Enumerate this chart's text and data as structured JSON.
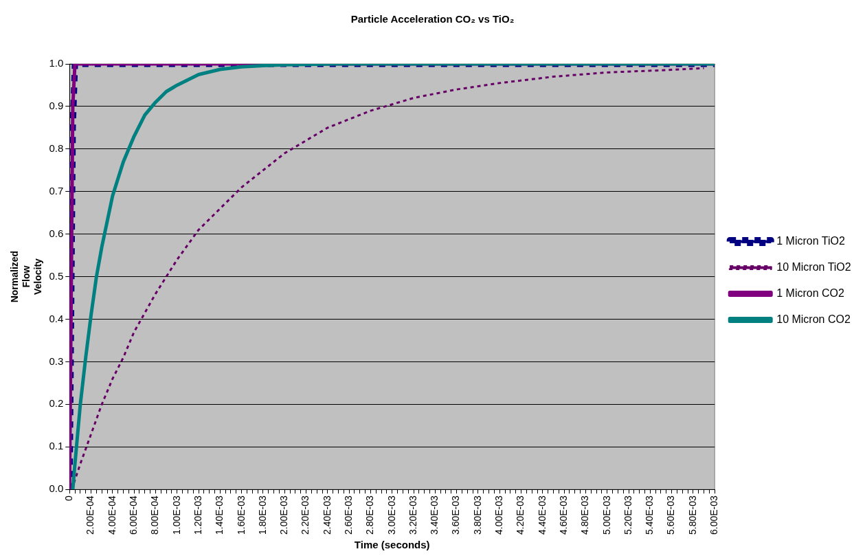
{
  "chart_data": {
    "type": "line",
    "title": "Particle Acceleration CO₂ vs TiO₂",
    "xlabel": "Time (seconds)",
    "ylabel": "Normalized Flow Velocity",
    "xlim": [
      0,
      0.006
    ],
    "ylim": [
      0,
      1
    ],
    "xticks": [
      {
        "value": 0,
        "label": "0"
      },
      {
        "value": 5e-05,
        "label": null
      },
      {
        "value": 0.0001,
        "label": null
      },
      {
        "value": 0.00015,
        "label": null
      },
      {
        "value": 0.0002,
        "label": "2.00E-04"
      },
      {
        "value": 0.00025,
        "label": null
      },
      {
        "value": 0.0003,
        "label": null
      },
      {
        "value": 0.00035,
        "label": null
      },
      {
        "value": 0.0004,
        "label": "4.00E-04"
      },
      {
        "value": 0.00045,
        "label": null
      },
      {
        "value": 0.0005,
        "label": null
      },
      {
        "value": 0.00055,
        "label": null
      },
      {
        "value": 0.0006,
        "label": "6.00E-04"
      },
      {
        "value": 0.00065,
        "label": null
      },
      {
        "value": 0.0007,
        "label": null
      },
      {
        "value": 0.00075,
        "label": null
      },
      {
        "value": 0.0008,
        "label": "8.00E-04"
      },
      {
        "value": 0.00085,
        "label": null
      },
      {
        "value": 0.0009,
        "label": null
      },
      {
        "value": 0.00095,
        "label": null
      },
      {
        "value": 0.001,
        "label": "1.00E-03"
      },
      {
        "value": 0.00105,
        "label": null
      },
      {
        "value": 0.0011,
        "label": null
      },
      {
        "value": 0.00115,
        "label": null
      },
      {
        "value": 0.0012,
        "label": "1.20E-03"
      },
      {
        "value": 0.00125,
        "label": null
      },
      {
        "value": 0.0013,
        "label": null
      },
      {
        "value": 0.00135,
        "label": null
      },
      {
        "value": 0.0014,
        "label": "1.40E-03"
      },
      {
        "value": 0.00145,
        "label": null
      },
      {
        "value": 0.0015,
        "label": null
      },
      {
        "value": 0.00155,
        "label": null
      },
      {
        "value": 0.0016,
        "label": "1.60E-03"
      },
      {
        "value": 0.00165,
        "label": null
      },
      {
        "value": 0.0017,
        "label": null
      },
      {
        "value": 0.00175,
        "label": null
      },
      {
        "value": 0.0018,
        "label": "1.80E-03"
      },
      {
        "value": 0.00185,
        "label": null
      },
      {
        "value": 0.0019,
        "label": null
      },
      {
        "value": 0.00195,
        "label": null
      },
      {
        "value": 0.002,
        "label": "2.00E-03"
      },
      {
        "value": 0.00205,
        "label": null
      },
      {
        "value": 0.0021,
        "label": null
      },
      {
        "value": 0.00215,
        "label": null
      },
      {
        "value": 0.0022,
        "label": "2.20E-03"
      },
      {
        "value": 0.00225,
        "label": null
      },
      {
        "value": 0.0023,
        "label": null
      },
      {
        "value": 0.00235,
        "label": null
      },
      {
        "value": 0.0024,
        "label": "2.40E-03"
      },
      {
        "value": 0.00245,
        "label": null
      },
      {
        "value": 0.0025,
        "label": null
      },
      {
        "value": 0.00255,
        "label": null
      },
      {
        "value": 0.0026,
        "label": "2.60E-03"
      },
      {
        "value": 0.00265,
        "label": null
      },
      {
        "value": 0.0027,
        "label": null
      },
      {
        "value": 0.00275,
        "label": null
      },
      {
        "value": 0.0028,
        "label": "2.80E-03"
      },
      {
        "value": 0.00285,
        "label": null
      },
      {
        "value": 0.0029,
        "label": null
      },
      {
        "value": 0.00295,
        "label": null
      },
      {
        "value": 0.003,
        "label": "3.00E-03"
      },
      {
        "value": 0.00305,
        "label": null
      },
      {
        "value": 0.0031,
        "label": null
      },
      {
        "value": 0.00315,
        "label": null
      },
      {
        "value": 0.0032,
        "label": "3.20E-03"
      },
      {
        "value": 0.00325,
        "label": null
      },
      {
        "value": 0.0033,
        "label": null
      },
      {
        "value": 0.00335,
        "label": null
      },
      {
        "value": 0.0034,
        "label": "3.40E-03"
      },
      {
        "value": 0.00345,
        "label": null
      },
      {
        "value": 0.0035,
        "label": null
      },
      {
        "value": 0.00355,
        "label": null
      },
      {
        "value": 0.0036,
        "label": "3.60E-03"
      },
      {
        "value": 0.00365,
        "label": null
      },
      {
        "value": 0.0037,
        "label": null
      },
      {
        "value": 0.00375,
        "label": null
      },
      {
        "value": 0.0038,
        "label": "3.80E-03"
      },
      {
        "value": 0.00385,
        "label": null
      },
      {
        "value": 0.0039,
        "label": null
      },
      {
        "value": 0.00395,
        "label": null
      },
      {
        "value": 0.004,
        "label": "4.00E-03"
      },
      {
        "value": 0.00405,
        "label": null
      },
      {
        "value": 0.0041,
        "label": null
      },
      {
        "value": 0.00415,
        "label": null
      },
      {
        "value": 0.0042,
        "label": "4.20E-03"
      },
      {
        "value": 0.00425,
        "label": null
      },
      {
        "value": 0.0043,
        "label": null
      },
      {
        "value": 0.00435,
        "label": null
      },
      {
        "value": 0.0044,
        "label": "4.40E-03"
      },
      {
        "value": 0.00445,
        "label": null
      },
      {
        "value": 0.0045,
        "label": null
      },
      {
        "value": 0.00455,
        "label": null
      },
      {
        "value": 0.0046,
        "label": "4.60E-03"
      },
      {
        "value": 0.00465,
        "label": null
      },
      {
        "value": 0.0047,
        "label": null
      },
      {
        "value": 0.00475,
        "label": null
      },
      {
        "value": 0.0048,
        "label": "4.80E-03"
      },
      {
        "value": 0.00485,
        "label": null
      },
      {
        "value": 0.0049,
        "label": null
      },
      {
        "value": 0.00495,
        "label": null
      },
      {
        "value": 0.005,
        "label": "5.00E-03"
      },
      {
        "value": 0.00505,
        "label": null
      },
      {
        "value": 0.0051,
        "label": null
      },
      {
        "value": 0.00515,
        "label": null
      },
      {
        "value": 0.0052,
        "label": "5.20E-03"
      },
      {
        "value": 0.00525,
        "label": null
      },
      {
        "value": 0.0053,
        "label": null
      },
      {
        "value": 0.00535,
        "label": null
      },
      {
        "value": 0.0054,
        "label": "5.40E-03"
      },
      {
        "value": 0.00545,
        "label": null
      },
      {
        "value": 0.0055,
        "label": null
      },
      {
        "value": 0.00555,
        "label": null
      },
      {
        "value": 0.0056,
        "label": "5.60E-03"
      },
      {
        "value": 0.00565,
        "label": null
      },
      {
        "value": 0.0057,
        "label": null
      },
      {
        "value": 0.00575,
        "label": null
      },
      {
        "value": 0.0058,
        "label": "5.80E-03"
      },
      {
        "value": 0.00585,
        "label": null
      },
      {
        "value": 0.0059,
        "label": null
      },
      {
        "value": 0.00595,
        "label": null
      },
      {
        "value": 0.006,
        "label": "6.00E-03"
      }
    ],
    "yticks": [
      {
        "value": 0,
        "label": "0.0"
      },
      0.1,
      0.2,
      0.3,
      0.4,
      0.5,
      0.6,
      0.7,
      0.8,
      0.9,
      {
        "value": 1,
        "label": "1.0"
      }
    ],
    "grid": "y",
    "legend": "right",
    "marker": "none",
    "series": [
      {
        "name": "1 Micron TiO2",
        "color": "#000080",
        "line_style": "dashed",
        "x": [
          0,
          3e-05,
          5e-05,
          0.006
        ],
        "values": [
          0,
          0.85,
          1,
          1
        ]
      },
      {
        "name": "10 Micron TiO2",
        "color": "#660066",
        "line_style": "dotted",
        "x": [
          2e-05,
          0.0001,
          0.0002,
          0.0003,
          0.0004,
          0.0005,
          0.0006,
          0.0008,
          0.001,
          0.0012,
          0.0014,
          0.0016,
          0.0018,
          0.002,
          0.0024,
          0.0028,
          0.0032,
          0.0036,
          0.004,
          0.0045,
          0.005,
          0.0055,
          0.0059
        ],
        "values": [
          0,
          0.06,
          0.13,
          0.2,
          0.26,
          0.31,
          0.37,
          0.46,
          0.54,
          0.61,
          0.66,
          0.71,
          0.75,
          0.79,
          0.85,
          0.89,
          0.92,
          0.94,
          0.955,
          0.97,
          0.98,
          0.985,
          0.99
        ]
      },
      {
        "name": "1 Micron CO2",
        "color": "#800080",
        "line_style": "solid",
        "x": [
          0,
          3e-05,
          5e-05,
          0.006
        ],
        "values": [
          0,
          0.9,
          1,
          1
        ]
      },
      {
        "name": "10 Micron CO2",
        "color": "#008080",
        "line_style": "solid",
        "x": [
          3e-05,
          5e-05,
          0.0001,
          0.00015,
          0.0002,
          0.00025,
          0.0003,
          0.0004,
          0.0005,
          0.0006,
          0.0007,
          0.0008,
          0.0009,
          0.001,
          0.0012,
          0.0014,
          0.0016,
          0.0018,
          0.002,
          0.0025,
          0.006
        ],
        "values": [
          0,
          0.06,
          0.2,
          0.31,
          0.41,
          0.5,
          0.57,
          0.69,
          0.77,
          0.83,
          0.88,
          0.91,
          0.935,
          0.95,
          0.975,
          0.987,
          0.993,
          0.996,
          0.998,
          1,
          1
        ]
      }
    ]
  }
}
